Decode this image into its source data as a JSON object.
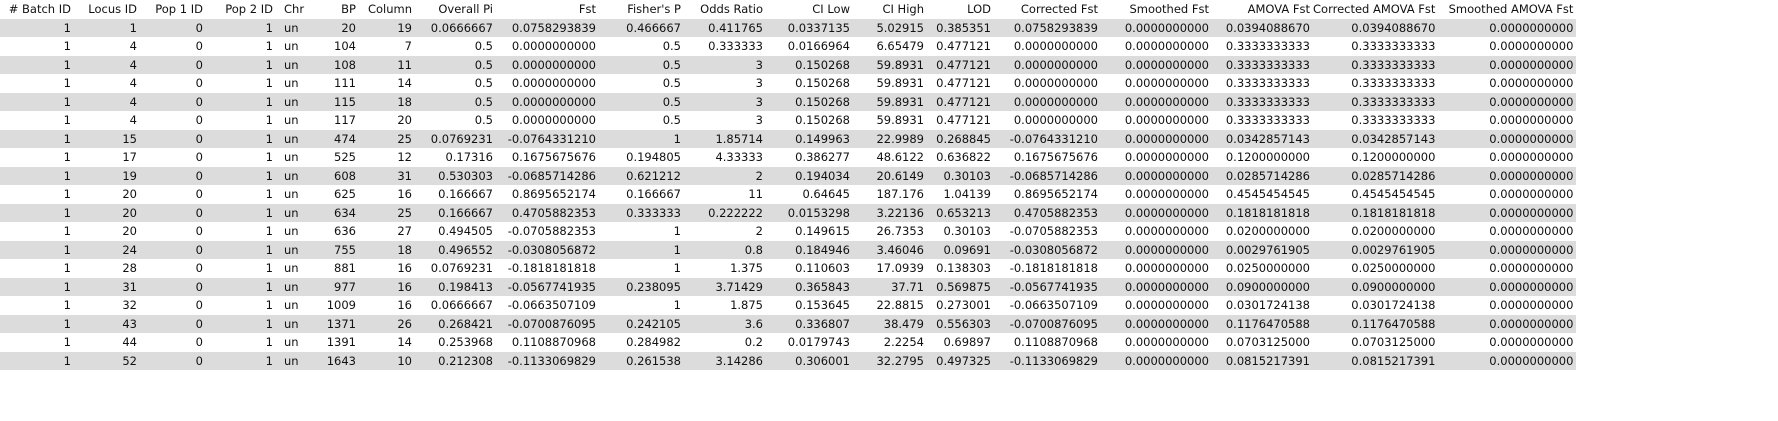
{
  "table": {
    "headers": [
      "# Batch ID",
      "Locus ID",
      "Pop 1 ID",
      "Pop 2 ID",
      "Chr",
      "BP",
      "Column",
      "Overall Pi",
      "Fst",
      "Fisher's P",
      "Odds Ratio",
      "CI Low",
      "CI High",
      "LOD",
      "Corrected Fst",
      "Smoothed Fst",
      "AMOVA Fst",
      "Corrected AMOVA Fst",
      "Smoothed AMOVA Fst"
    ],
    "rows": [
      [
        "1",
        "1",
        "0",
        "1",
        "un",
        "20",
        "19",
        "0.0666667",
        "0.0758293839",
        "0.466667",
        "0.411765",
        "0.0337135",
        "5.02915",
        "0.385351",
        "0.0758293839",
        "0.0000000000",
        "0.0394088670",
        "0.0394088670",
        "0.0000000000"
      ],
      [
        "1",
        "4",
        "0",
        "1",
        "un",
        "104",
        "7",
        "0.5",
        "0.0000000000",
        "0.5",
        "0.333333",
        "0.0166964",
        "6.65479",
        "0.477121",
        "0.0000000000",
        "0.0000000000",
        "0.3333333333",
        "0.3333333333",
        "0.0000000000"
      ],
      [
        "1",
        "4",
        "0",
        "1",
        "un",
        "108",
        "11",
        "0.5",
        "0.0000000000",
        "0.5",
        "3",
        "0.150268",
        "59.8931",
        "0.477121",
        "0.0000000000",
        "0.0000000000",
        "0.3333333333",
        "0.3333333333",
        "0.0000000000"
      ],
      [
        "1",
        "4",
        "0",
        "1",
        "un",
        "111",
        "14",
        "0.5",
        "0.0000000000",
        "0.5",
        "3",
        "0.150268",
        "59.8931",
        "0.477121",
        "0.0000000000",
        "0.0000000000",
        "0.3333333333",
        "0.3333333333",
        "0.0000000000"
      ],
      [
        "1",
        "4",
        "0",
        "1",
        "un",
        "115",
        "18",
        "0.5",
        "0.0000000000",
        "0.5",
        "3",
        "0.150268",
        "59.8931",
        "0.477121",
        "0.0000000000",
        "0.0000000000",
        "0.3333333333",
        "0.3333333333",
        "0.0000000000"
      ],
      [
        "1",
        "4",
        "0",
        "1",
        "un",
        "117",
        "20",
        "0.5",
        "0.0000000000",
        "0.5",
        "3",
        "0.150268",
        "59.8931",
        "0.477121",
        "0.0000000000",
        "0.0000000000",
        "0.3333333333",
        "0.3333333333",
        "0.0000000000"
      ],
      [
        "1",
        "15",
        "0",
        "1",
        "un",
        "474",
        "25",
        "0.0769231",
        "-0.0764331210",
        "1",
        "1.85714",
        "0.149963",
        "22.9989",
        "0.268845",
        "-0.0764331210",
        "0.0000000000",
        "0.0342857143",
        "0.0342857143",
        "0.0000000000"
      ],
      [
        "1",
        "17",
        "0",
        "1",
        "un",
        "525",
        "12",
        "0.17316",
        "0.1675675676",
        "0.194805",
        "4.33333",
        "0.386277",
        "48.6122",
        "0.636822",
        "0.1675675676",
        "0.0000000000",
        "0.1200000000",
        "0.1200000000",
        "0.0000000000"
      ],
      [
        "1",
        "19",
        "0",
        "1",
        "un",
        "608",
        "31",
        "0.530303",
        "-0.0685714286",
        "0.621212",
        "2",
        "0.194034",
        "20.6149",
        "0.30103",
        "-0.0685714286",
        "0.0000000000",
        "0.0285714286",
        "0.0285714286",
        "0.0000000000"
      ],
      [
        "1",
        "20",
        "0",
        "1",
        "un",
        "625",
        "16",
        "0.166667",
        "0.8695652174",
        "0.166667",
        "11",
        "0.64645",
        "187.176",
        "1.04139",
        "0.8695652174",
        "0.0000000000",
        "0.4545454545",
        "0.4545454545",
        "0.0000000000"
      ],
      [
        "1",
        "20",
        "0",
        "1",
        "un",
        "634",
        "25",
        "0.166667",
        "0.4705882353",
        "0.333333",
        "0.222222",
        "0.0153298",
        "3.22136",
        "0.653213",
        "0.4705882353",
        "0.0000000000",
        "0.1818181818",
        "0.1818181818",
        "0.0000000000"
      ],
      [
        "1",
        "20",
        "0",
        "1",
        "un",
        "636",
        "27",
        "0.494505",
        "-0.0705882353",
        "1",
        "2",
        "0.149615",
        "26.7353",
        "0.30103",
        "-0.0705882353",
        "0.0000000000",
        "0.0200000000",
        "0.0200000000",
        "0.0000000000"
      ],
      [
        "1",
        "24",
        "0",
        "1",
        "un",
        "755",
        "18",
        "0.496552",
        "-0.0308056872",
        "1",
        "0.8",
        "0.184946",
        "3.46046",
        "0.09691",
        "-0.0308056872",
        "0.0000000000",
        "0.0029761905",
        "0.0029761905",
        "0.0000000000"
      ],
      [
        "1",
        "28",
        "0",
        "1",
        "un",
        "881",
        "16",
        "0.0769231",
        "-0.1818181818",
        "1",
        "1.375",
        "0.110603",
        "17.0939",
        "0.138303",
        "-0.1818181818",
        "0.0000000000",
        "0.0250000000",
        "0.0250000000",
        "0.0000000000"
      ],
      [
        "1",
        "31",
        "0",
        "1",
        "un",
        "977",
        "16",
        "0.198413",
        "-0.0567741935",
        "0.238095",
        "3.71429",
        "0.365843",
        "37.71",
        "0.569875",
        "-0.0567741935",
        "0.0000000000",
        "0.0900000000",
        "0.0900000000",
        "0.0000000000"
      ],
      [
        "1",
        "32",
        "0",
        "1",
        "un",
        "1009",
        "16",
        "0.0666667",
        "-0.0663507109",
        "1",
        "1.875",
        "0.153645",
        "22.8815",
        "0.273001",
        "-0.0663507109",
        "0.0000000000",
        "0.0301724138",
        "0.0301724138",
        "0.0000000000"
      ],
      [
        "1",
        "43",
        "0",
        "1",
        "un",
        "1371",
        "26",
        "0.268421",
        "-0.0700876095",
        "0.242105",
        "3.6",
        "0.336807",
        "38.479",
        "0.556303",
        "-0.0700876095",
        "0.0000000000",
        "0.1176470588",
        "0.1176470588",
        "0.0000000000"
      ],
      [
        "1",
        "44",
        "0",
        "1",
        "un",
        "1391",
        "14",
        "0.253968",
        "0.1108870968",
        "0.284982",
        "0.2",
        "0.0179743",
        "2.2254",
        "0.69897",
        "0.1108870968",
        "0.0000000000",
        "0.0703125000",
        "0.0703125000",
        "0.0000000000"
      ],
      [
        "1",
        "52",
        "0",
        "1",
        "un",
        "1643",
        "10",
        "0.212308",
        "-0.1133069829",
        "0.261538",
        "3.14286",
        "0.306001",
        "32.2795",
        "0.497325",
        "-0.1133069829",
        "0.0000000000",
        "0.0815217391",
        "0.0815217391",
        "0.0000000000"
      ]
    ]
  }
}
